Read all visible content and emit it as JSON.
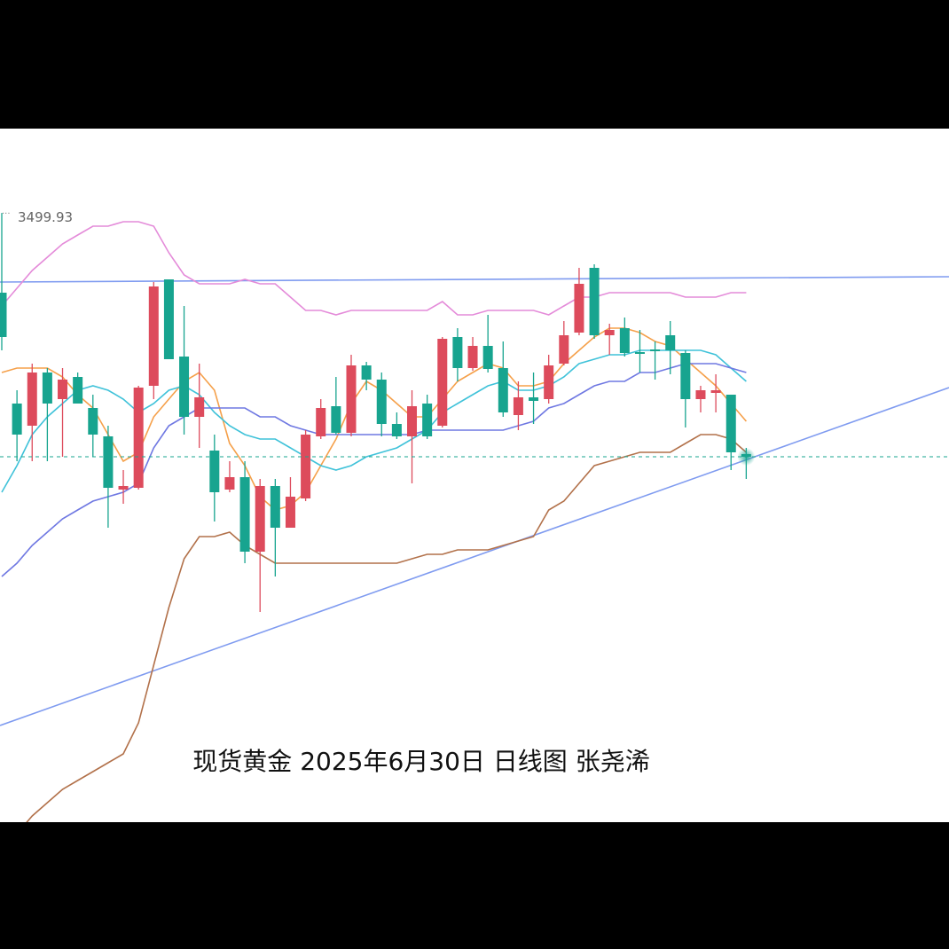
{
  "chart_data": {
    "type": "candlestick",
    "title": "现货黄金 2025年6月30日 日线图 张尧浠",
    "ylim": [
      2950.4,
      3576
    ],
    "up_color": "#dd4b5c",
    "down_color": "#17a48f",
    "open": [
      3428,
      3328,
      3308,
      3356,
      3332,
      3352,
      3324,
      3298.4,
      3250.4,
      3252,
      3344,
      3440,
      3370.4,
      3316,
      3285.6,
      3250.4,
      3261.6,
      3194.4,
      3253.6,
      3216,
      3242.4,
      3298.4,
      3325.6,
      3301.6,
      3362.4,
      3349.6,
      3309.6,
      3298.4,
      3328,
      3308,
      3388,
      3360,
      3380,
      3360,
      3317.6,
      3333.6,
      3332,
      3364,
      3392,
      3450.4,
      3389.6,
      3396,
      3374.4,
      3376.8,
      3389.6,
      3373.6,
      3332,
      3337.6,
      3336,
      3282.4
    ],
    "high": [
      3499.93,
      3340,
      3364,
      3360,
      3360,
      3356,
      3336,
      3308,
      3268,
      3344,
      3437.6,
      3440,
      3416,
      3364,
      3300,
      3276,
      3276,
      3260,
      3260,
      3261.6,
      3304,
      3332,
      3352,
      3372,
      3365.6,
      3356,
      3320,
      3340,
      3336,
      3388,
      3396,
      3388,
      3408,
      3384,
      3348,
      3356,
      3372,
      3402.4,
      3450.4,
      3453.6,
      3400,
      3405.6,
      3394.4,
      3384,
      3402.4,
      3376,
      3344,
      3354.4,
      3336,
      3288
    ],
    "low": [
      3376,
      3276,
      3276,
      3276,
      3280,
      3328,
      3280,
      3216,
      3237.6,
      3250.4,
      3332,
      3368,
      3300,
      3288,
      3221.6,
      3248,
      3184,
      3140,
      3172,
      3216,
      3240,
      3296,
      3300,
      3298.4,
      3340,
      3298.4,
      3296,
      3256,
      3296,
      3306.4,
      3348,
      3357.6,
      3356,
      3316,
      3304,
      3309.6,
      3328,
      3362.4,
      3389.6,
      3386.4,
      3372,
      3370.4,
      3356,
      3349.6,
      3354.4,
      3306.4,
      3320,
      3320,
      3268,
      3260
    ],
    "close": [
      3388,
      3300,
      3356,
      3328,
      3349.6,
      3328,
      3300,
      3252,
      3253.6,
      3342.4,
      3433.6,
      3368,
      3316,
      3333.6,
      3248,
      3261.6,
      3194.4,
      3253.6,
      3216,
      3244,
      3300,
      3324,
      3301.6,
      3362.4,
      3349.6,
      3309.6,
      3298.4,
      3325.6,
      3298.4,
      3386.4,
      3360,
      3380,
      3359.2,
      3320,
      3333.6,
      3330.4,
      3362.4,
      3389.6,
      3436,
      3389.6,
      3394.4,
      3373.6,
      3372.8,
      3375.2,
      3376,
      3332,
      3340,
      3340,
      3284,
      3280
    ],
    "lines": [
      {
        "color": "#e48bd9",
        "values": [
          3416,
          3432,
          3448,
          3460,
          3472,
          3480,
          3488,
          3488,
          3492,
          3492,
          3488,
          3464,
          3444,
          3436,
          3436,
          3436,
          3440,
          3436,
          3436,
          3424,
          3412,
          3412,
          3408,
          3412,
          3412,
          3412,
          3412,
          3412,
          3412,
          3420,
          3408,
          3408,
          3412,
          3412,
          3412,
          3412,
          3408,
          3416,
          3424,
          3424,
          3428,
          3428,
          3428,
          3428,
          3428,
          3424,
          3424,
          3424,
          3428,
          3428
        ]
      },
      {
        "color": "#f5a04a",
        "values": [
          3356,
          3360,
          3360,
          3360,
          3352,
          3336,
          3324,
          3300,
          3276,
          3284,
          3316,
          3332,
          3348,
          3356,
          3340,
          3292,
          3272,
          3244,
          3232,
          3236,
          3248,
          3272,
          3296,
          3328,
          3348,
          3340,
          3328,
          3316,
          3316,
          3332,
          3348,
          3356,
          3364,
          3360,
          3344,
          3344,
          3348,
          3364,
          3376,
          3388,
          3396,
          3396,
          3392,
          3384,
          3380,
          3368,
          3356,
          3344,
          3328,
          3312
        ]
      },
      {
        "color": "#3fc2d9",
        "values": [
          3248,
          3272,
          3300,
          3316,
          3328,
          3340,
          3344,
          3340,
          3332,
          3320,
          3328,
          3340,
          3344,
          3336,
          3320,
          3308,
          3300,
          3296,
          3296,
          3288,
          3280,
          3272,
          3268,
          3272,
          3280,
          3284,
          3288,
          3296,
          3304,
          3320,
          3328,
          3336,
          3344,
          3348,
          3340,
          3340,
          3344,
          3352,
          3364,
          3368,
          3372,
          3372,
          3376,
          3376,
          3376,
          3376,
          3376,
          3372,
          3360,
          3348
        ]
      },
      {
        "color": "#6f78e2",
        "values": [
          3172,
          3184,
          3200,
          3212,
          3224,
          3232,
          3240,
          3244,
          3248,
          3256,
          3288,
          3308,
          3316,
          3324,
          3324,
          3324,
          3324,
          3316,
          3316,
          3308,
          3304,
          3300,
          3300,
          3300,
          3300,
          3300,
          3300,
          3300,
          3304,
          3304,
          3304,
          3304,
          3304,
          3304,
          3308,
          3312,
          3324,
          3328,
          3336,
          3344,
          3348,
          3348,
          3356,
          3356,
          3360,
          3364,
          3364,
          3364,
          3360,
          3356
        ]
      },
      {
        "color": "#b2714a",
        "values": [
          2928,
          2940,
          2956,
          2968,
          2980,
          2988,
          2996,
          3004,
          3012,
          3040,
          3092,
          3144,
          3188,
          3208,
          3208,
          3212,
          3200,
          3192,
          3184,
          3184,
          3184,
          3184,
          3184,
          3184,
          3184,
          3184,
          3184,
          3188,
          3192,
          3192,
          3196,
          3196,
          3196,
          3200,
          3204,
          3208,
          3232,
          3240,
          3256,
          3272,
          3276,
          3280,
          3284,
          3284,
          3284,
          3292,
          3300,
          3300,
          3296,
          3284
        ]
      }
    ]
  }
}
